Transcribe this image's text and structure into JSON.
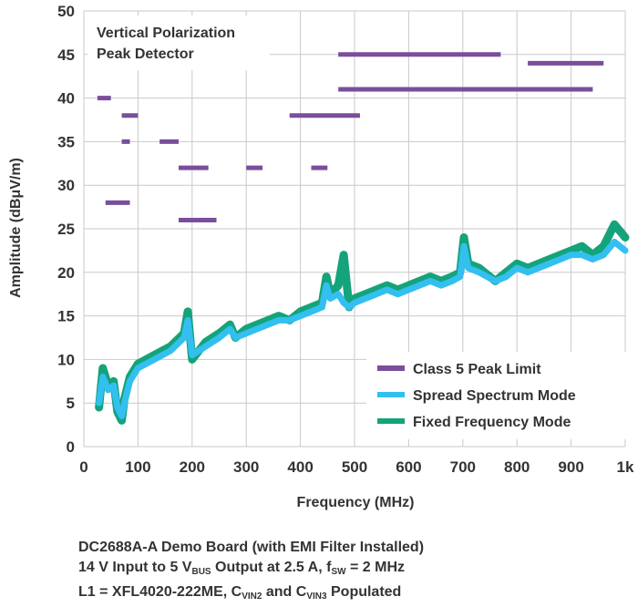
{
  "colors": {
    "limit": "#7a4e9c",
    "spread": "#33bff0",
    "fixed": "#14a37a",
    "grid": "#c9c9c9",
    "text": "#333333"
  },
  "chart_data": {
    "type": "line",
    "xlabel": "Frequency (MHz)",
    "ylabel": "Amplitude (dBμV/m)",
    "xlim": [
      0,
      1000
    ],
    "ylim": [
      0,
      50
    ],
    "x_ticks": [
      0,
      100,
      200,
      300,
      400,
      500,
      600,
      700,
      800,
      900,
      1000
    ],
    "x_tick_labels": [
      "0",
      "100",
      "200",
      "300",
      "400",
      "500",
      "600",
      "700",
      "800",
      "900",
      "1k"
    ],
    "y_ticks": [
      0,
      5,
      10,
      15,
      20,
      25,
      30,
      35,
      40,
      45,
      50
    ],
    "grid": true,
    "annotation": [
      "Vertical Polarization",
      "Peak Detector"
    ],
    "legend": [
      "Class 5 Peak Limit",
      "Spread Spectrum Mode",
      "Fixed Frequency Mode"
    ],
    "legend_position": "bottom-right",
    "limit_segments": [
      {
        "x": [
          25,
          50
        ],
        "y": 40
      },
      {
        "x": [
          70,
          100
        ],
        "y": 38
      },
      {
        "x": [
          70,
          85
        ],
        "y": 35
      },
      {
        "x": [
          140,
          175
        ],
        "y": 35
      },
      {
        "x": [
          175,
          230
        ],
        "y": 32
      },
      {
        "x": [
          300,
          330
        ],
        "y": 32
      },
      {
        "x": [
          420,
          450
        ],
        "y": 32
      },
      {
        "x": [
          40,
          85
        ],
        "y": 28
      },
      {
        "x": [
          175,
          245
        ],
        "y": 26
      },
      {
        "x": [
          380,
          510
        ],
        "y": 38
      },
      {
        "x": [
          470,
          770
        ],
        "y": 45
      },
      {
        "x": [
          470,
          940
        ],
        "y": 41
      },
      {
        "x": [
          820,
          960
        ],
        "y": 44
      }
    ],
    "series": [
      {
        "name": "Spread Spectrum Mode",
        "x": [
          28,
          35,
          45,
          55,
          62,
          70,
          75,
          85,
          100,
          130,
          160,
          185,
          192,
          200,
          225,
          250,
          270,
          280,
          300,
          320,
          340,
          360,
          380,
          400,
          420,
          440,
          448,
          455,
          470,
          480,
          490,
          500,
          520,
          540,
          560,
          580,
          600,
          620,
          640,
          660,
          680,
          695,
          702,
          710,
          730,
          760,
          780,
          800,
          820,
          840,
          860,
          880,
          900,
          920,
          940,
          960,
          980,
          1000
        ],
        "y": [
          5,
          8,
          6.5,
          7,
          4.5,
          3.5,
          5,
          7.5,
          9,
          10,
          11,
          12.5,
          14.5,
          10.5,
          11.5,
          12.5,
          13.5,
          12.5,
          13,
          13.5,
          14,
          14.5,
          14.5,
          15,
          15.5,
          16,
          18.5,
          17,
          17.5,
          16.5,
          16,
          16.5,
          17,
          17.5,
          18,
          17.5,
          18,
          18.5,
          19,
          18.5,
          19,
          19.5,
          23,
          20.5,
          20,
          19,
          19.5,
          20.5,
          20,
          20.5,
          21,
          21.5,
          22,
          22,
          21.5,
          22,
          23.5,
          22.5
        ]
      },
      {
        "name": "Fixed Frequency Mode",
        "x": [
          28,
          35,
          45,
          55,
          62,
          70,
          75,
          85,
          100,
          130,
          160,
          185,
          192,
          200,
          225,
          250,
          270,
          280,
          300,
          320,
          340,
          360,
          380,
          400,
          420,
          440,
          448,
          455,
          470,
          480,
          490,
          500,
          520,
          540,
          560,
          580,
          600,
          620,
          640,
          660,
          680,
          695,
          702,
          710,
          730,
          760,
          780,
          800,
          820,
          840,
          860,
          880,
          900,
          920,
          940,
          960,
          980,
          1000
        ],
        "y": [
          4.5,
          9,
          7,
          7.5,
          4,
          3,
          5.5,
          8,
          9.5,
          10.5,
          11.5,
          13,
          15.5,
          10,
          12,
          13,
          14,
          12.5,
          13.5,
          14,
          14.5,
          15,
          14.5,
          15.5,
          16,
          16.5,
          19.5,
          17.5,
          18.5,
          22,
          16,
          17,
          17.5,
          18,
          18.5,
          18,
          18.5,
          19,
          19.5,
          19,
          19.5,
          20,
          24,
          21,
          20.5,
          19,
          20,
          21,
          20.5,
          21,
          21.5,
          22,
          22.5,
          23,
          22,
          23,
          25.5,
          24
        ]
      }
    ]
  },
  "caption": {
    "line1": "DC2688A-A Demo Board (with EMI Filter Installed)",
    "line2": {
      "a": "14 V Input to 5 V",
      "sub1": "BUS",
      "b": " Output at 2.5 A, f",
      "sub2": "SW",
      "c": " = 2 MHz"
    },
    "line3": {
      "a": "L1 = XFL4020-222ME, C",
      "sub1": "VIN2",
      "b": " and C",
      "sub2": "VIN3",
      "c": " Populated"
    }
  }
}
